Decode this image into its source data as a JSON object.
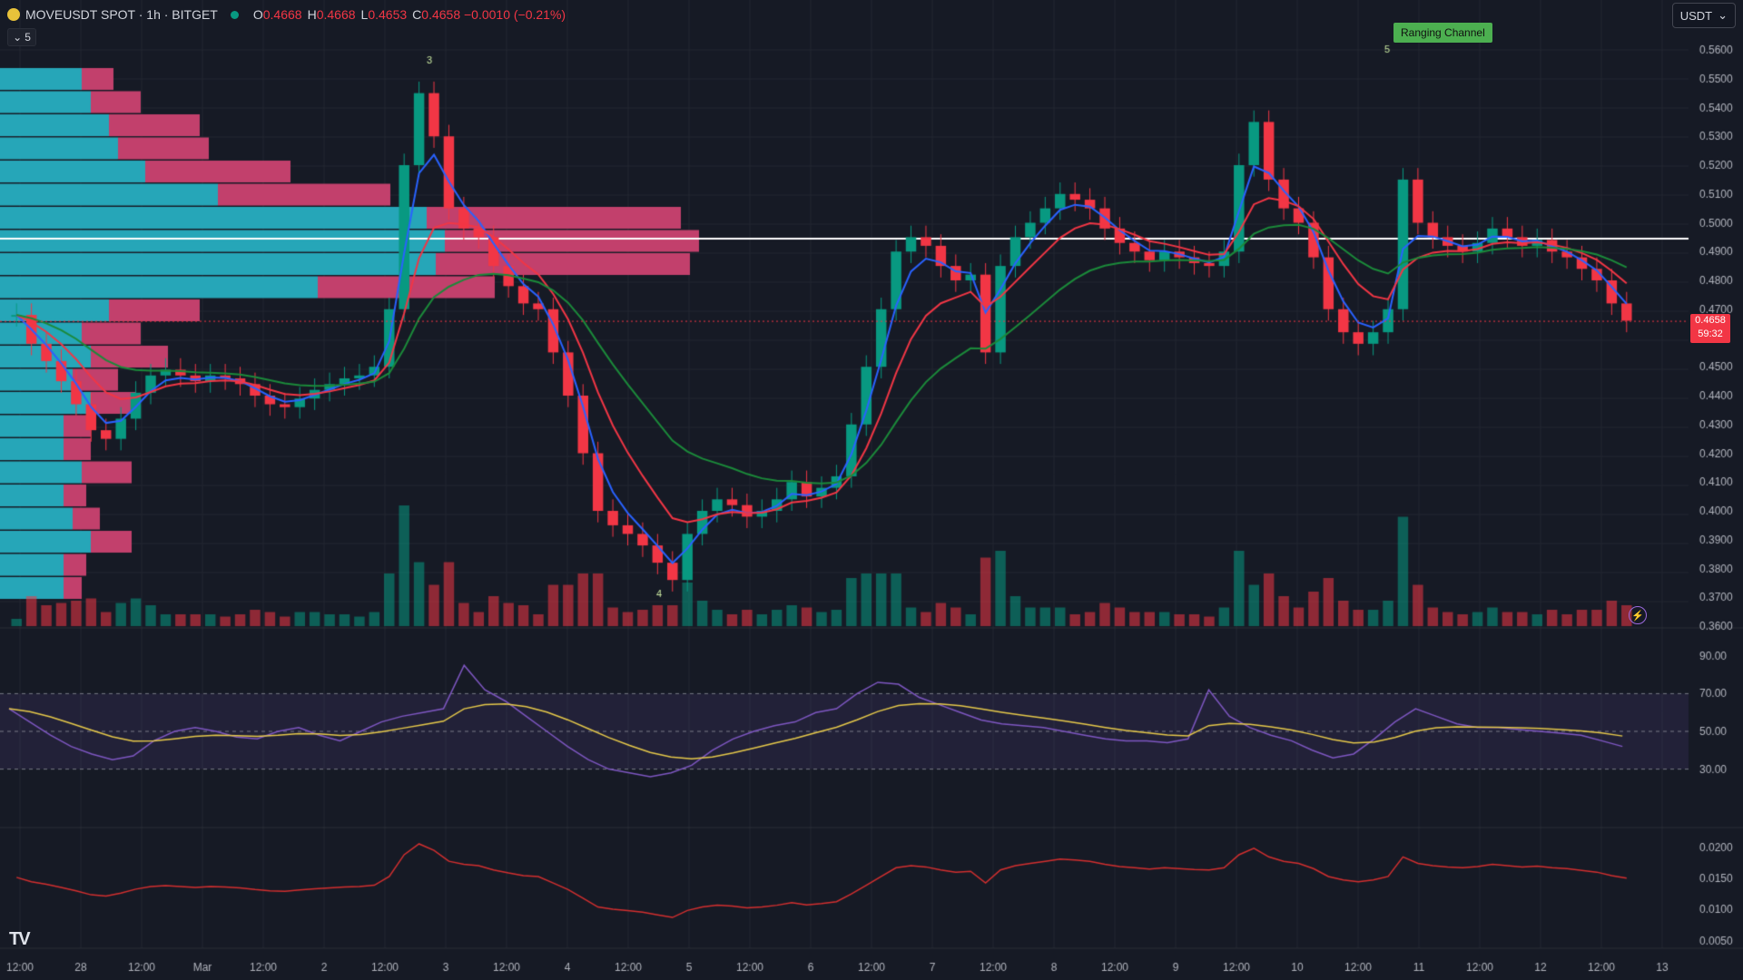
{
  "header": {
    "symbol": "MOVEUSDT SPOT · 1h · BITGET",
    "o_label": "O",
    "o": "0.4668",
    "h_label": "H",
    "h": "0.4668",
    "l_label": "L",
    "l": "0.4653",
    "c_label": "C",
    "c": "0.4658 −0.0010 (−0.21%)",
    "collapse_count": "5",
    "currency": "USDT"
  },
  "price_axis": [
    "0.5600",
    "0.5500",
    "0.5400",
    "0.5300",
    "0.5200",
    "0.5100",
    "0.5000",
    "0.4900",
    "0.4800",
    "0.4700",
    "0.4500",
    "0.4400",
    "0.4300",
    "0.4200",
    "0.4100",
    "0.4000",
    "0.3900",
    "0.3800",
    "0.3700",
    "0.3600"
  ],
  "current_price": "0.4658",
  "countdown": "59:32",
  "annotations": {
    "ranging_channel": "Ranging Channel",
    "wave_3": "3",
    "wave_4": "4",
    "wave_5": "5"
  },
  "rsi_axis": [
    "90.00",
    "70.00",
    "50.00",
    "30.00"
  ],
  "bottom_axis": [
    "0.0200",
    "0.0150",
    "0.0100",
    "0.0050"
  ],
  "time_axis": [
    "12:00",
    "28",
    "12:00",
    "Mar",
    "12:00",
    "2",
    "12:00",
    "3",
    "12:00",
    "4",
    "12:00",
    "5",
    "12:00",
    "6",
    "12:00",
    "7",
    "12:00",
    "8",
    "12:00",
    "9",
    "12:00",
    "10",
    "12:00",
    "11",
    "12:00",
    "12",
    "12:00",
    "13"
  ],
  "colors": {
    "up": "#089981",
    "down": "#f23645",
    "ema_fast": "#2962ff",
    "ema_mid": "#f23645",
    "ema_slow": "#1b8a3a",
    "rsi": "#7e57c2",
    "rsi_ma": "#e6c94a",
    "bottom_line": "#d32f2f"
  },
  "chart_data": {
    "type": "line",
    "title": "MOVEUSDT 1h",
    "price_series": [
      0.468,
      0.458,
      0.452,
      0.445,
      0.437,
      0.428,
      0.425,
      0.432,
      0.441,
      0.447,
      0.449,
      0.447,
      0.445,
      0.447,
      0.446,
      0.444,
      0.44,
      0.437,
      0.436,
      0.439,
      0.442,
      0.444,
      0.446,
      0.447,
      0.45,
      0.47,
      0.52,
      0.545,
      0.53,
      0.505,
      0.498,
      0.495,
      0.485,
      0.478,
      0.472,
      0.47,
      0.455,
      0.44,
      0.42,
      0.4,
      0.395,
      0.392,
      0.388,
      0.382,
      0.376,
      0.392,
      0.4,
      0.404,
      0.402,
      0.398,
      0.4,
      0.404,
      0.41,
      0.405,
      0.408,
      0.412,
      0.43,
      0.45,
      0.47,
      0.49,
      0.495,
      0.492,
      0.485,
      0.48,
      0.482,
      0.455,
      0.485,
      0.495,
      0.5,
      0.505,
      0.51,
      0.508,
      0.505,
      0.498,
      0.493,
      0.49,
      0.487,
      0.49,
      0.488,
      0.486,
      0.485,
      0.49,
      0.52,
      0.535,
      0.515,
      0.505,
      0.5,
      0.488,
      0.47,
      0.462,
      0.458,
      0.462,
      0.47,
      0.515,
      0.5,
      0.495,
      0.492,
      0.49,
      0.493,
      0.498,
      0.495,
      0.492,
      0.494,
      0.49,
      0.488,
      0.484,
      0.48,
      0.472,
      0.466
    ],
    "rsi": [
      62,
      55,
      48,
      42,
      38,
      35,
      37,
      45,
      50,
      52,
      50,
      47,
      46,
      50,
      52,
      48,
      45,
      50,
      55,
      58,
      60,
      62,
      85,
      72,
      66,
      58,
      50,
      42,
      35,
      30,
      28,
      26,
      28,
      32,
      40,
      46,
      50,
      53,
      55,
      60,
      62,
      70,
      76,
      75,
      68,
      64,
      60,
      56,
      54,
      53,
      52,
      50,
      48,
      46,
      45,
      45,
      44,
      46,
      72,
      58,
      52,
      48,
      45,
      40,
      36,
      38,
      46,
      55,
      62,
      58,
      54,
      52,
      52,
      51,
      50,
      49,
      48,
      45,
      42
    ]
  }
}
